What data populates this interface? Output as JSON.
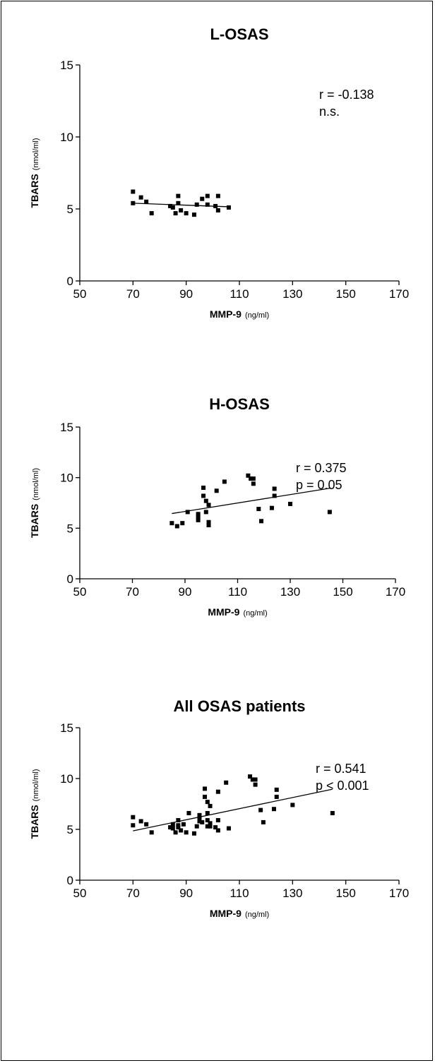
{
  "chart_data": [
    {
      "type": "scatter",
      "title": "L-OSAS",
      "xlabel": "MMP-9",
      "xlabel_unit": "(ng/ml)",
      "ylabel": "TBARS",
      "ylabel_unit": "(nmol/ml)",
      "xlim": [
        50,
        170
      ],
      "ylim": [
        0,
        15
      ],
      "xticks": [
        "50",
        "70",
        "90",
        "110",
        "130",
        "150",
        "170"
      ],
      "yticks": [
        "0",
        "5",
        "10",
        "15"
      ],
      "stats": [
        "r = -0.138",
        "n.s."
      ],
      "points": [
        {
          "x": 70,
          "y": 6.2
        },
        {
          "x": 70,
          "y": 5.4
        },
        {
          "x": 73,
          "y": 5.8
        },
        {
          "x": 75,
          "y": 5.5
        },
        {
          "x": 77,
          "y": 4.7
        },
        {
          "x": 84,
          "y": 5.2
        },
        {
          "x": 85,
          "y": 5.1
        },
        {
          "x": 86,
          "y": 4.7
        },
        {
          "x": 87,
          "y": 5.4
        },
        {
          "x": 87,
          "y": 5.9
        },
        {
          "x": 88,
          "y": 4.9
        },
        {
          "x": 90,
          "y": 4.7
        },
        {
          "x": 93,
          "y": 4.6
        },
        {
          "x": 94,
          "y": 5.3
        },
        {
          "x": 96,
          "y": 5.7
        },
        {
          "x": 98,
          "y": 5.9
        },
        {
          "x": 98,
          "y": 5.3
        },
        {
          "x": 101,
          "y": 5.2
        },
        {
          "x": 102,
          "y": 5.9
        },
        {
          "x": 102,
          "y": 4.9
        },
        {
          "x": 106,
          "y": 5.1
        }
      ],
      "fit_line": {
        "x": [
          70,
          106
        ],
        "y": [
          5.4,
          5.15
        ]
      }
    },
    {
      "type": "scatter",
      "title": "H-OSAS",
      "xlabel": "MMP-9",
      "xlabel_unit": "(ng/ml)",
      "ylabel": "TBARS",
      "ylabel_unit": "(nmol/ml)",
      "xlim": [
        50,
        170
      ],
      "ylim": [
        0,
        15
      ],
      "xticks": [
        "50",
        "70",
        "90",
        "110",
        "130",
        "150",
        "170"
      ],
      "yticks": [
        "0",
        "5",
        "10",
        "15"
      ],
      "stats": [
        "r = 0.375",
        "p = 0.05"
      ],
      "points": [
        {
          "x": 85,
          "y": 5.5
        },
        {
          "x": 87,
          "y": 5.2
        },
        {
          "x": 89,
          "y": 5.5
        },
        {
          "x": 91,
          "y": 6.6
        },
        {
          "x": 95,
          "y": 6.4
        },
        {
          "x": 95,
          "y": 6.1
        },
        {
          "x": 95,
          "y": 5.8
        },
        {
          "x": 97,
          "y": 9.0
        },
        {
          "x": 97,
          "y": 8.2
        },
        {
          "x": 98,
          "y": 7.7
        },
        {
          "x": 98,
          "y": 6.6
        },
        {
          "x": 99,
          "y": 7.3
        },
        {
          "x": 99,
          "y": 5.6
        },
        {
          "x": 99,
          "y": 5.3
        },
        {
          "x": 102,
          "y": 8.7
        },
        {
          "x": 105,
          "y": 9.6
        },
        {
          "x": 114,
          "y": 10.2
        },
        {
          "x": 115,
          "y": 9.9
        },
        {
          "x": 116,
          "y": 9.9
        },
        {
          "x": 116,
          "y": 9.4
        },
        {
          "x": 118,
          "y": 6.9
        },
        {
          "x": 119,
          "y": 5.7
        },
        {
          "x": 123,
          "y": 7.0
        },
        {
          "x": 124,
          "y": 8.9
        },
        {
          "x": 124,
          "y": 8.2
        },
        {
          "x": 130,
          "y": 7.4
        },
        {
          "x": 145,
          "y": 6.6
        }
      ],
      "fit_line": {
        "x": [
          85,
          145
        ],
        "y": [
          6.45,
          8.95
        ]
      }
    },
    {
      "type": "scatter",
      "title": "All OSAS patients",
      "xlabel": "MMP-9",
      "xlabel_unit": "(ng/ml)",
      "ylabel": "TBARS",
      "ylabel_unit": "(nmol/ml)",
      "xlim": [
        50,
        170
      ],
      "ylim": [
        0,
        15
      ],
      "xticks": [
        "50",
        "70",
        "90",
        "110",
        "130",
        "150",
        "170"
      ],
      "yticks": [
        "0",
        "5",
        "10",
        "15"
      ],
      "stats": [
        "r = 0.541",
        "p < 0.001"
      ],
      "points": [
        {
          "x": 70,
          "y": 6.2
        },
        {
          "x": 70,
          "y": 5.4
        },
        {
          "x": 73,
          "y": 5.8
        },
        {
          "x": 75,
          "y": 5.5
        },
        {
          "x": 77,
          "y": 4.7
        },
        {
          "x": 84,
          "y": 5.2
        },
        {
          "x": 85,
          "y": 5.1
        },
        {
          "x": 86,
          "y": 4.7
        },
        {
          "x": 87,
          "y": 5.4
        },
        {
          "x": 87,
          "y": 5.9
        },
        {
          "x": 88,
          "y": 4.9
        },
        {
          "x": 90,
          "y": 4.7
        },
        {
          "x": 93,
          "y": 4.6
        },
        {
          "x": 94,
          "y": 5.3
        },
        {
          "x": 96,
          "y": 5.7
        },
        {
          "x": 98,
          "y": 5.9
        },
        {
          "x": 98,
          "y": 5.3
        },
        {
          "x": 101,
          "y": 5.2
        },
        {
          "x": 102,
          "y": 5.9
        },
        {
          "x": 102,
          "y": 4.9
        },
        {
          "x": 106,
          "y": 5.1
        },
        {
          "x": 85,
          "y": 5.5
        },
        {
          "x": 87,
          "y": 5.2
        },
        {
          "x": 89,
          "y": 5.5
        },
        {
          "x": 91,
          "y": 6.6
        },
        {
          "x": 95,
          "y": 6.4
        },
        {
          "x": 95,
          "y": 6.1
        },
        {
          "x": 95,
          "y": 5.8
        },
        {
          "x": 97,
          "y": 9.0
        },
        {
          "x": 97,
          "y": 8.2
        },
        {
          "x": 98,
          "y": 7.7
        },
        {
          "x": 98,
          "y": 6.6
        },
        {
          "x": 99,
          "y": 7.3
        },
        {
          "x": 99,
          "y": 5.6
        },
        {
          "x": 99,
          "y": 5.3
        },
        {
          "x": 102,
          "y": 8.7
        },
        {
          "x": 105,
          "y": 9.6
        },
        {
          "x": 114,
          "y": 10.2
        },
        {
          "x": 115,
          "y": 9.9
        },
        {
          "x": 116,
          "y": 9.9
        },
        {
          "x": 116,
          "y": 9.4
        },
        {
          "x": 118,
          "y": 6.9
        },
        {
          "x": 119,
          "y": 5.7
        },
        {
          "x": 123,
          "y": 7.0
        },
        {
          "x": 124,
          "y": 8.9
        },
        {
          "x": 124,
          "y": 8.2
        },
        {
          "x": 130,
          "y": 7.4
        },
        {
          "x": 145,
          "y": 6.6
        }
      ],
      "fit_line": {
        "x": [
          70,
          145
        ],
        "y": [
          4.85,
          8.95
        ]
      }
    }
  ]
}
